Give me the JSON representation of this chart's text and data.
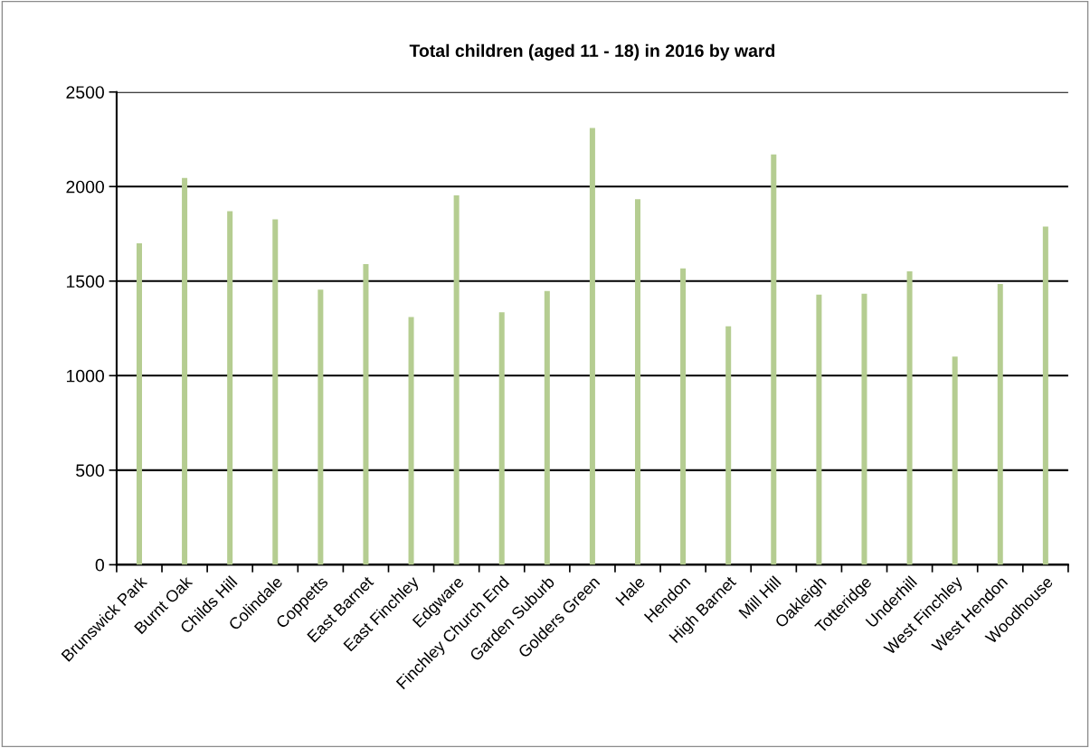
{
  "chart_data": {
    "type": "bar",
    "title": "Total children (aged 11 - 18) in 2016 by ward",
    "categories": [
      "Brunswick Park",
      "Burnt Oak",
      "Childs Hill",
      "Colindale",
      "Coppetts",
      "East Barnet",
      "East Finchley",
      "Edgware",
      "Finchley Church End",
      "Garden Suburb",
      "Golders Green",
      "Hale",
      "Hendon",
      "High Barnet",
      "Mill Hill",
      "Oakleigh",
      "Totteridge",
      "Underhill",
      "West Finchley",
      "West Hendon",
      "Woodhouse"
    ],
    "values": [
      1700,
      2045,
      1870,
      1827,
      1455,
      1590,
      1310,
      1953,
      1335,
      1447,
      2310,
      1933,
      1567,
      1261,
      2170,
      1428,
      1433,
      1552,
      1101,
      1485,
      1788
    ],
    "color": "#b5cd91",
    "ylim": [
      0,
      2500
    ],
    "yticks": [
      0,
      500,
      1000,
      1500,
      2000,
      2500
    ],
    "grid": "y"
  }
}
